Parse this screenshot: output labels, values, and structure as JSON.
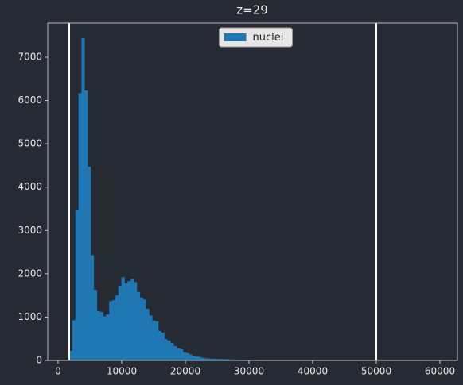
{
  "chart_data": {
    "type": "histogram",
    "title": "z=29",
    "bins": [
      1750,
      2232.5,
      2715,
      3197.5,
      3680,
      4162.5,
      4645,
      5127.5,
      5610,
      6092.5,
      6575,
      7057.5,
      7540,
      8022.5,
      8505,
      8987.5,
      9470,
      9952.5,
      10435,
      10917.5,
      11400,
      11882.5,
      12365,
      12847.5,
      13330,
      13812.5,
      14295,
      14777.5,
      15260,
      15742.5,
      16225,
      16707.5,
      17190,
      17672.5,
      18155,
      18637.5,
      19120,
      19602.5,
      20085,
      20567.5,
      21050,
      21532.5,
      22015,
      22497.5,
      22980,
      23462.5,
      23945,
      24427.5,
      24910,
      25392.5,
      25875,
      26357.5,
      26840,
      27322.5,
      27805,
      28287.5,
      28770,
      29252.5,
      29735,
      30217.5,
      30700,
      31182.5,
      31665,
      32147.5,
      32630,
      33112.5,
      33595,
      34077.5,
      34560,
      35042.5,
      35525,
      36007.5,
      36490,
      36972.5,
      37455,
      37937.5,
      38420,
      38902.5,
      39385,
      39867.5,
      40350,
      40832.5,
      41315,
      41797.5,
      42280,
      42762.5,
      43245,
      43727.5,
      44210,
      44692.5,
      45175,
      45657.5,
      46140,
      46622.5,
      47105,
      47587.5,
      48070,
      48552.5,
      49035,
      49517.5,
      50000
    ],
    "series": [
      {
        "name": "nuclei",
        "color": "#1f77b4",
        "values": [
          220,
          930,
          3480,
          6170,
          7440,
          6230,
          4470,
          2430,
          1630,
          1140,
          1120,
          1020,
          1060,
          1370,
          1390,
          1500,
          1720,
          1920,
          1780,
          1830,
          1880,
          1810,
          1580,
          1450,
          1410,
          1190,
          1040,
          920,
          900,
          680,
          640,
          490,
          460,
          400,
          330,
          280,
          260,
          190,
          170,
          140,
          110,
          90,
          80,
          60,
          50,
          45,
          40,
          38,
          35,
          32,
          30,
          28,
          25,
          22,
          20,
          18,
          16,
          15,
          14,
          12,
          11,
          10,
          9,
          8,
          8,
          7,
          6,
          6,
          5,
          5,
          4,
          4,
          3,
          3,
          3,
          2,
          2,
          2,
          2,
          1,
          1,
          1,
          1,
          1,
          1,
          1,
          1,
          0,
          0,
          1,
          0,
          0,
          0,
          0,
          1,
          0,
          0,
          0,
          0,
          1
        ]
      }
    ],
    "vlines": [
      1750,
      50000
    ],
    "xlim": [
      -1625,
      62750
    ],
    "xticks": [
      0,
      10000,
      20000,
      30000,
      40000,
      50000,
      60000
    ],
    "ylim": [
      0,
      7788
    ],
    "yticks": [
      0,
      1000,
      2000,
      3000,
      4000,
      5000,
      6000,
      7000
    ],
    "legend": "upper center"
  }
}
